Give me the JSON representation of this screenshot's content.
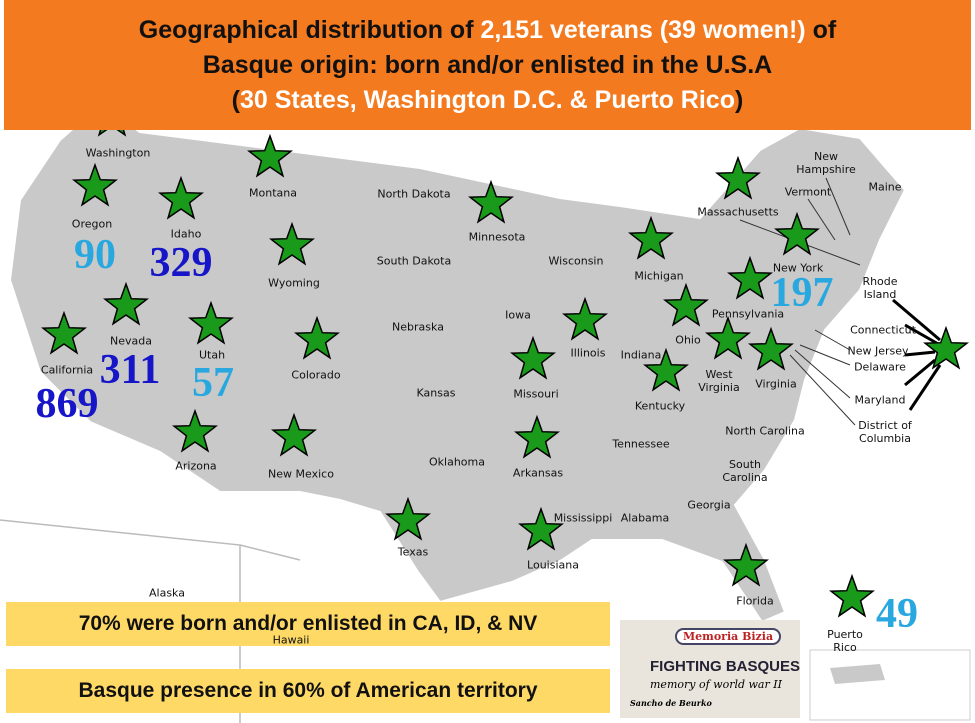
{
  "header": {
    "title": [
      "Geographical distribution of ",
      "2,151 veterans (39 women!)",
      " of",
      "Basque origin: born and/or enlisted in the U.S.A",
      "(",
      "30 States, Washington D.C. & Puerto Rico",
      ")"
    ]
  },
  "states": [
    {
      "name": "Washington"
    },
    {
      "name": "Oregon",
      "count": 90,
      "count_color": "#29a8e0"
    },
    {
      "name": "Idaho",
      "count": 329,
      "count_color": "#1616c8"
    },
    {
      "name": "Montana"
    },
    {
      "name": "North Dakota"
    },
    {
      "name": "Minnesota"
    },
    {
      "name": "Massachusetts"
    },
    {
      "name": "New Hampshire"
    },
    {
      "name": "Vermont"
    },
    {
      "name": "Maine"
    },
    {
      "name": "Wyoming"
    },
    {
      "name": "South Dakota"
    },
    {
      "name": "Wisconsin"
    },
    {
      "name": "Michigan"
    },
    {
      "name": "New York",
      "count": 197,
      "count_color": "#29a8e0"
    },
    {
      "name": "California",
      "count": 869,
      "count_color": "#1616c8"
    },
    {
      "name": "Nevada",
      "count": 311,
      "count_color": "#1616c8"
    },
    {
      "name": "Utah",
      "count": 57,
      "count_color": "#29a8e0"
    },
    {
      "name": "Colorado"
    },
    {
      "name": "Nebraska"
    },
    {
      "name": "Iowa"
    },
    {
      "name": "Illinois"
    },
    {
      "name": "Indiana"
    },
    {
      "name": "Ohio"
    },
    {
      "name": "Pennsylvania"
    },
    {
      "name": "West Virginia"
    },
    {
      "name": "Virginia"
    },
    {
      "name": "Kentucky"
    },
    {
      "name": "Missouri"
    },
    {
      "name": "Kansas"
    },
    {
      "name": "Arizona"
    },
    {
      "name": "New Mexico"
    },
    {
      "name": "Oklahoma"
    },
    {
      "name": "Arkansas"
    },
    {
      "name": "Tennessee"
    },
    {
      "name": "North Carolina"
    },
    {
      "name": "South Carolina"
    },
    {
      "name": "Georgia"
    },
    {
      "name": "Texas"
    },
    {
      "name": "Mississippi"
    },
    {
      "name": "Alabama"
    },
    {
      "name": "Louisiana"
    },
    {
      "name": "Florida"
    },
    {
      "name": "Alaska"
    },
    {
      "name": "Hawaii"
    },
    {
      "name": "Puerto Rico",
      "count": 49,
      "count_color": "#29a8e0"
    },
    {
      "name": "Rhode Island"
    },
    {
      "name": "Connecticut"
    },
    {
      "name": "New Jersey"
    },
    {
      "name": "Delaware"
    },
    {
      "name": "Maryland"
    },
    {
      "name": "District of Columbia"
    }
  ],
  "notes": [
    "70% were born and/or enlisted in CA, ID, & NV",
    "Basque presence in 60% of American territory"
  ],
  "logo": {
    "name": "Memoria Bizia",
    "title": "FIGHTING BASQUES",
    "subtitle": "memory of world war II",
    "author": "Sancho de Beurko"
  }
}
